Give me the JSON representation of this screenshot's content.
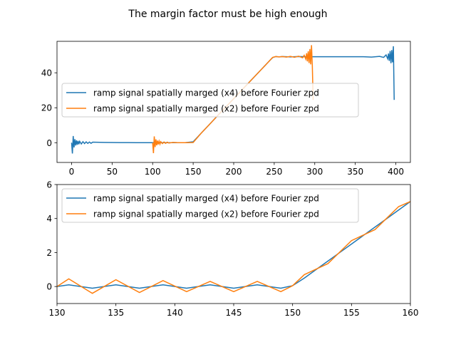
{
  "figure": {
    "suptitle": "The margin factor must be high enough"
  },
  "colors": {
    "series1": "#1f77b4",
    "series2": "#ff7f0e",
    "axes": "#000000",
    "background": "#ffffff"
  },
  "chart_data": [
    {
      "type": "line",
      "xlim": [
        -18,
        418
      ],
      "ylim": [
        -11.3,
        58
      ],
      "xticks": [
        0,
        50,
        100,
        150,
        200,
        250,
        300,
        350,
        400
      ],
      "yticks": [
        0,
        20,
        40
      ],
      "legend": "center-left",
      "grid": false,
      "series": [
        {
          "name": "ramp signal spatially marged (x4) before Fourier zpd",
          "color": "#1f77b4",
          "x": [
            0,
            1,
            2,
            3,
            4,
            5,
            6,
            7,
            8,
            9,
            10,
            12,
            14,
            16,
            18,
            20,
            22,
            24,
            26,
            30,
            35,
            40,
            50,
            60,
            70,
            80,
            90,
            100,
            110,
            120,
            130,
            140,
            150,
            160,
            170,
            180,
            190,
            200,
            210,
            220,
            230,
            240,
            248,
            252,
            256,
            260,
            270,
            280,
            290,
            300,
            320,
            340,
            360,
            370,
            380,
            385,
            388,
            390,
            391,
            392,
            393,
            394,
            395,
            396,
            397,
            398
          ],
          "y": [
            0,
            -6.2,
            3.8,
            -2.7,
            2.0,
            -1.6,
            1.4,
            -1.2,
            1.0,
            -0.9,
            0.8,
            -0.7,
            0.6,
            -0.5,
            0.5,
            -0.4,
            0.4,
            -0.35,
            0.3,
            0.25,
            0.2,
            0.15,
            0.1,
            0.08,
            0.05,
            0.03,
            0.02,
            0,
            0,
            0,
            0,
            0,
            0.5,
            5.5,
            10.4,
            15.4,
            20.3,
            25.2,
            30.1,
            35.0,
            39.9,
            44.8,
            48.7,
            49.3,
            49.1,
            49.3,
            49.1,
            49.3,
            49.2,
            49.2,
            49.2,
            49.2,
            49.2,
            49.0,
            49.4,
            48.8,
            50.2,
            48.0,
            51.0,
            46.8,
            52.5,
            45.5,
            53.0,
            46.0,
            55.2,
            24.5
          ]
        },
        {
          "name": "ramp signal spatially marged (x2) before Fourier zpd",
          "color": "#ff7f0e",
          "x": [
            100,
            101,
            102,
            103,
            104,
            105,
            106,
            107,
            108,
            109,
            110,
            112,
            114,
            116,
            118,
            120,
            125,
            130,
            140,
            150,
            160,
            170,
            180,
            190,
            200,
            210,
            220,
            230,
            240,
            248,
            252,
            256,
            260,
            265,
            270,
            275,
            280,
            285,
            287,
            289,
            290,
            291,
            292,
            293,
            294,
            295,
            296,
            297,
            298
          ],
          "y": [
            0,
            -6.0,
            3.6,
            -2.5,
            1.9,
            -1.5,
            1.2,
            -1.0,
            0.9,
            -0.8,
            0.6,
            -0.5,
            0.4,
            -0.35,
            0.3,
            -0.2,
            0.15,
            0.05,
            0,
            0.1,
            5.5,
            10.4,
            15.4,
            20.3,
            25.2,
            30.1,
            35.0,
            39.9,
            44.8,
            48.8,
            49.3,
            49.1,
            49.3,
            49.0,
            49.4,
            48.9,
            49.5,
            48.6,
            50.0,
            47.8,
            51.2,
            46.5,
            52.3,
            45.6,
            53.6,
            44.8,
            55.8,
            44.0,
            24.5
          ]
        }
      ]
    },
    {
      "type": "line",
      "xlim": [
        130,
        160
      ],
      "ylim": [
        -1,
        6
      ],
      "xticks": [
        130,
        135,
        140,
        145,
        150,
        155,
        160
      ],
      "yticks": [
        0,
        2,
        4,
        6
      ],
      "legend": "top-left",
      "grid": false,
      "series": [
        {
          "name": "ramp signal spatially marged (x4) before Fourier zpd",
          "color": "#1f77b4",
          "x": [
            130,
            131,
            132,
            133,
            134,
            135,
            136,
            137,
            138,
            139,
            140,
            141,
            142,
            143,
            144,
            145,
            146,
            147,
            148,
            149,
            150,
            151,
            152,
            153,
            154,
            155,
            156,
            157,
            158,
            159,
            160
          ],
          "y": [
            0,
            0.1,
            0,
            -0.1,
            0,
            0.1,
            0,
            -0.1,
            0,
            0.1,
            0,
            -0.1,
            0,
            0.1,
            0,
            -0.1,
            0,
            0.1,
            0,
            -0.1,
            0.05,
            0.5,
            1.0,
            1.5,
            2.0,
            2.5,
            3.0,
            3.5,
            4.0,
            4.5,
            5.0
          ]
        },
        {
          "name": "ramp signal spatially marged (x2) before Fourier zpd",
          "color": "#ff7f0e",
          "x": [
            130,
            131,
            133,
            135,
            137,
            139,
            141,
            143,
            145,
            147,
            149,
            150,
            151,
            153,
            155,
            157,
            159,
            160
          ],
          "y": [
            0,
            0.45,
            -0.4,
            0.4,
            -0.35,
            0.35,
            -0.3,
            0.3,
            -0.3,
            0.3,
            -0.3,
            0.05,
            0.7,
            1.35,
            2.7,
            3.35,
            4.7,
            5.0
          ]
        }
      ]
    }
  ]
}
